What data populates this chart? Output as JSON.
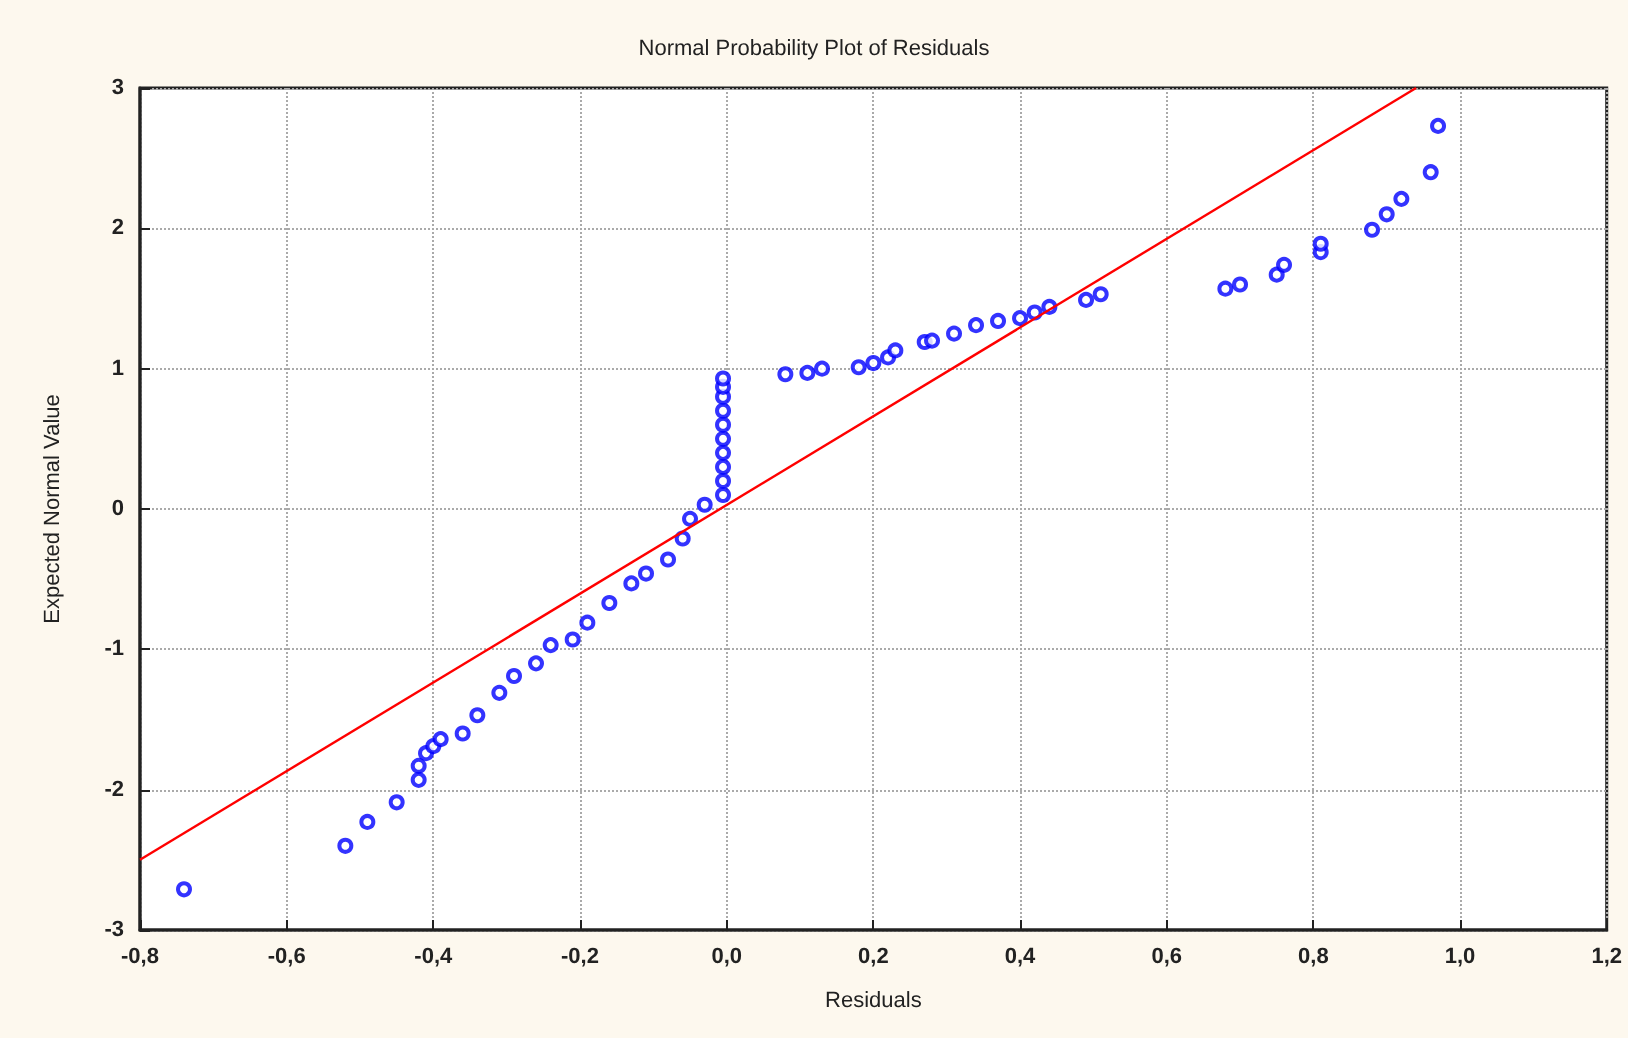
{
  "chart_data": {
    "type": "scatter",
    "title": "Normal Probability Plot of Residuals",
    "xlabel": "Residuals",
    "ylabel": "Expected Normal Value",
    "xlim": [
      -0.8,
      1.2
    ],
    "ylim": [
      -3,
      3
    ],
    "xticks": [
      {
        "value": -0.8,
        "label": "-0,8"
      },
      {
        "value": -0.6,
        "label": "-0,6"
      },
      {
        "value": -0.4,
        "label": "-0,4"
      },
      {
        "value": -0.2,
        "label": "-0,2"
      },
      {
        "value": 0,
        "label": "0,0"
      },
      {
        "value": 0.2,
        "label": "0,2"
      },
      {
        "value": 0.4,
        "label": "0,4"
      },
      {
        "value": 0.6,
        "label": "0,6"
      },
      {
        "value": 0.8,
        "label": "0,8"
      },
      {
        "value": 1.0,
        "label": "1,0"
      },
      {
        "value": 1.2,
        "label": "1,2"
      }
    ],
    "yticks": [
      -3,
      -2,
      -1,
      0,
      1,
      2,
      3
    ],
    "grid": true,
    "marker": "circle",
    "series": [
      {
        "color": "#0000ff",
        "x": [
          -0.74,
          -0.52,
          -0.49,
          -0.45,
          -0.42,
          -0.42,
          -0.41,
          -0.4,
          -0.39,
          -0.36,
          -0.34,
          -0.31,
          -0.29,
          -0.26,
          -0.24,
          -0.21,
          -0.19,
          -0.16,
          -0.13,
          -0.11,
          -0.08,
          -0.06,
          -0.05,
          -0.03,
          -0.005,
          -0.005,
          -0.005,
          -0.005,
          -0.005,
          -0.005,
          -0.005,
          -0.005,
          -0.005,
          -0.005,
          0.08,
          0.11,
          0.13,
          0.18,
          0.2,
          0.22,
          0.23,
          0.27,
          0.28,
          0.31,
          0.34,
          0.37,
          0.4,
          0.42,
          0.44,
          0.49,
          0.51,
          0.68,
          0.7,
          0.75,
          0.76,
          0.81,
          0.81,
          0.88,
          0.9,
          0.92,
          0.96,
          0.97
        ],
        "values": [
          -2.71,
          -2.4,
          -2.23,
          -2.09,
          -1.93,
          -1.83,
          -1.74,
          -1.69,
          -1.64,
          -1.6,
          -1.47,
          -1.31,
          -1.19,
          -1.1,
          -0.97,
          -0.93,
          -0.81,
          -0.67,
          -0.53,
          -0.46,
          -0.36,
          -0.21,
          -0.07,
          0.03,
          0.1,
          0.2,
          0.3,
          0.4,
          0.5,
          0.6,
          0.7,
          0.8,
          0.87,
          0.93,
          0.96,
          0.97,
          1.0,
          1.01,
          1.04,
          1.08,
          1.13,
          1.19,
          1.2,
          1.25,
          1.31,
          1.34,
          1.36,
          1.4,
          1.44,
          1.49,
          1.53,
          1.57,
          1.6,
          1.67,
          1.74,
          1.83,
          1.89,
          1.99,
          2.1,
          2.21,
          2.4,
          2.73
        ]
      },
      {
        "type": "line",
        "color": "#ff0000",
        "marker": "none",
        "x": [
          -0.8,
          0.94
        ],
        "values": [
          -2.5,
          3.0
        ]
      }
    ]
  }
}
